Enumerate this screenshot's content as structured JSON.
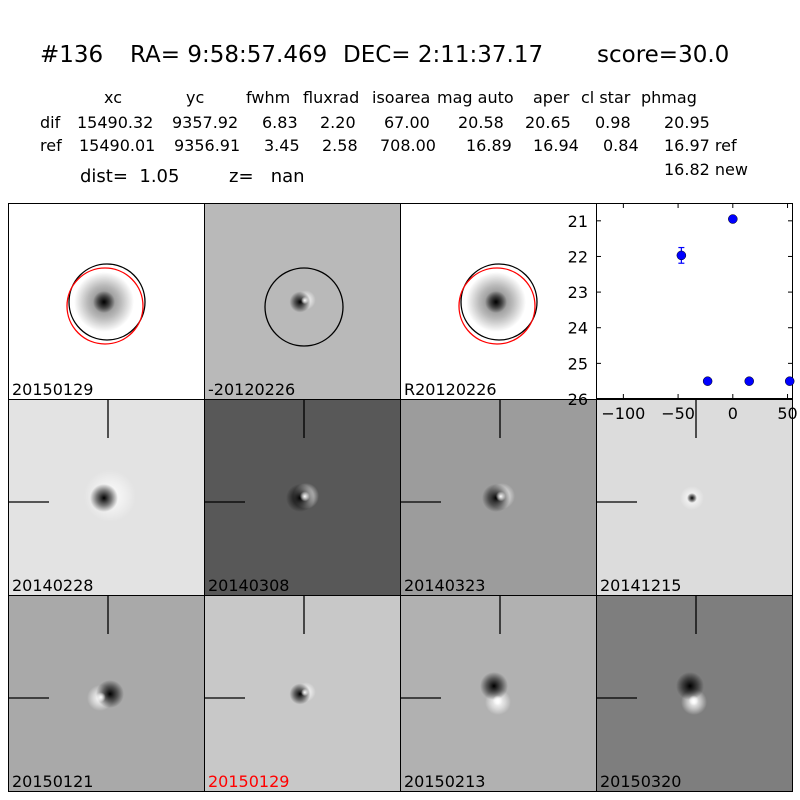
{
  "header": {
    "id": "#136",
    "ra": "RA= 9:58:57.469",
    "dec": "DEC= 2:11:37.17",
    "score": "score=30.0"
  },
  "table": {
    "columns": [
      "xc",
      "yc",
      "fwhm",
      "fluxrad",
      "isoarea",
      "mag auto",
      "aper",
      "cl star",
      "phmag"
    ],
    "rows": [
      {
        "label": "dif",
        "values": [
          "15490.32",
          "9357.92",
          "6.83",
          "2.20",
          "67.00",
          "20.58",
          "20.65",
          "0.98",
          "20.95"
        ]
      },
      {
        "label": "ref",
        "values": [
          "15490.01",
          "9356.91",
          "3.45",
          "2.58",
          "708.00",
          "16.89",
          "16.94",
          "0.84",
          "16.97 ref"
        ]
      }
    ],
    "extra": "16.82 new",
    "dist": "dist=  1.05",
    "z": "z=   nan"
  },
  "panels": [
    {
      "label": "20150129",
      "bg": "#ffffff",
      "blob": "dark-soft",
      "circle": "double",
      "cross": false,
      "label_color": "#000000"
    },
    {
      "label": "-20120226",
      "bg": "#b9b9b9",
      "blob": "dipole-small",
      "circle": "single",
      "cross": false,
      "label_color": "#000000"
    },
    {
      "label": "R20120226",
      "bg": "#ffffff",
      "blob": "dark-soft",
      "circle": "double",
      "cross": false,
      "label_color": "#000000"
    },
    {
      "label": "20140228",
      "bg": "#e3e3e3",
      "blob": "dark-ring",
      "circle": "none",
      "cross": true,
      "label_color": "#000000"
    },
    {
      "label": "20140308",
      "bg": "#585858",
      "blob": "dipole",
      "circle": "none",
      "cross": true,
      "label_color": "#000000"
    },
    {
      "label": "20140323",
      "bg": "#9c9c9c",
      "blob": "dipole",
      "circle": "none",
      "cross": true,
      "label_color": "#000000"
    },
    {
      "label": "20141215",
      "bg": "#dcdcdc",
      "blob": "small",
      "circle": "none",
      "cross": true,
      "label_color": "#000000"
    },
    {
      "label": "20150121",
      "bg": "#a9a9a9",
      "blob": "dipole-rev",
      "circle": "none",
      "cross": true,
      "label_color": "#000000"
    },
    {
      "label": "20150129",
      "bg": "#c8c8c8",
      "blob": "dipole-small",
      "circle": "none",
      "cross": true,
      "label_color": "#ff0000"
    },
    {
      "label": "20150213",
      "bg": "#b1b1b1",
      "blob": "dipole-down",
      "circle": "none",
      "cross": true,
      "label_color": "#000000"
    },
    {
      "label": "20150320",
      "bg": "#7e7e7e",
      "blob": "dipole-down",
      "circle": "none",
      "cross": true,
      "label_color": "#000000"
    }
  ],
  "chart_data": {
    "type": "scatter",
    "title": "",
    "xlabel": "",
    "ylabel": "",
    "xlim": [
      -125,
      55
    ],
    "ylim": [
      26,
      20.5
    ],
    "y_inverted": true,
    "xticks": [
      -100,
      -50,
      0,
      50
    ],
    "xtick_labels": [
      "−100",
      "−50",
      "0",
      "50"
    ],
    "yticks": [
      21,
      22,
      23,
      24,
      25,
      26
    ],
    "ytick_labels": [
      "21",
      "22",
      "23",
      "24",
      "25",
      "26"
    ],
    "points": [
      {
        "x": -47,
        "y": 21.97,
        "err": 0.22
      },
      {
        "x": 0,
        "y": 20.95,
        "err": 0.03
      },
      {
        "x": -23,
        "y": 25.5,
        "err": 0
      },
      {
        "x": 15,
        "y": 25.5,
        "err": 0
      },
      {
        "x": 52,
        "y": 25.5,
        "err": 0
      }
    ],
    "color": "#0000ff"
  }
}
